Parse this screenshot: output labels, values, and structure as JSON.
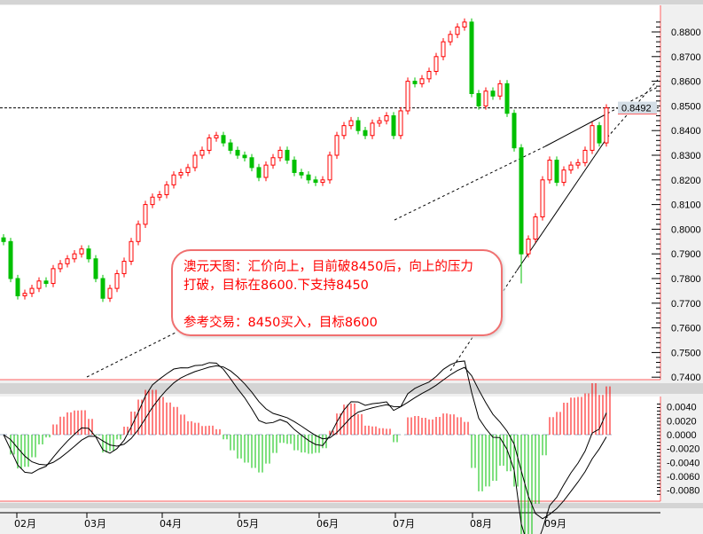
{
  "chart_data": {
    "type": "candlestick",
    "price_axis": {
      "min": 0.74,
      "max": 0.88,
      "ticks": [
        "0.8800",
        "0.8700",
        "0.8600",
        "0.8500",
        "0.8400",
        "0.8300",
        "0.8200",
        "0.8100",
        "0.8000",
        "0.7900",
        "0.7800",
        "0.7700",
        "0.7600",
        "0.7500",
        "0.7400"
      ]
    },
    "current_price": "0.8492",
    "closes": [
      0.795,
      0.78,
      0.773,
      0.774,
      0.776,
      0.779,
      0.778,
      0.784,
      0.786,
      0.788,
      0.79,
      0.792,
      0.788,
      0.78,
      0.772,
      0.776,
      0.782,
      0.787,
      0.795,
      0.802,
      0.81,
      0.813,
      0.814,
      0.818,
      0.822,
      0.823,
      0.825,
      0.83,
      0.832,
      0.837,
      0.838,
      0.835,
      0.832,
      0.83,
      0.829,
      0.825,
      0.821,
      0.826,
      0.829,
      0.832,
      0.828,
      0.823,
      0.822,
      0.82,
      0.819,
      0.82,
      0.83,
      0.838,
      0.842,
      0.844,
      0.84,
      0.838,
      0.843,
      0.844,
      0.846,
      0.838,
      0.848,
      0.86,
      0.859,
      0.861,
      0.864,
      0.87,
      0.876,
      0.879,
      0.882,
      0.884,
      0.855,
      0.85,
      0.856,
      0.854,
      0.859,
      0.847,
      0.833,
      0.79,
      0.796,
      0.805,
      0.82,
      0.828,
      0.819,
      0.824,
      0.826,
      0.827,
      0.832,
      0.842,
      0.835,
      0.8492
    ],
    "x_ticks": [
      "02月",
      "03月",
      "04月",
      "05月",
      "06月",
      "07月",
      "08月",
      "09月"
    ],
    "macd_axis": {
      "min": -0.008,
      "max": 0.004,
      "ticks": [
        "0.0040",
        "0.0020",
        "0.0000",
        "-0.0020",
        "-0.0040",
        "-0.0060",
        "-0.0080"
      ]
    },
    "colors": {
      "up": "#ff0000",
      "down": "#00c000",
      "line": "#000000",
      "zero": "#a0b0c8"
    }
  },
  "annotation": {
    "line1": "澳元天图：汇价向上，目前破8450后，向上的压力",
    "line2": "打破，目标在8600.下支持8450",
    "line3": "参考交易：8450买入，目标8600"
  }
}
